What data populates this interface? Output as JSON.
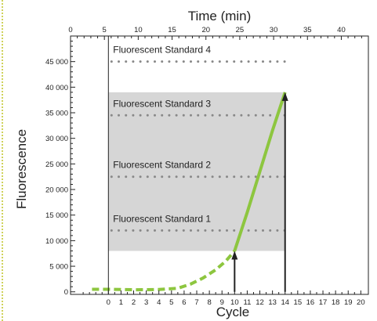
{
  "colors": {
    "curve": "#8dc63f",
    "shade": "#d6d6d6",
    "dots": "#888888",
    "axis": "#222222",
    "edge_marker": "#cfd25a"
  },
  "chart_data": {
    "type": "line",
    "xlabel": "Cycle",
    "x2label": "Time (min)",
    "ylabel": "Fluorescence",
    "xlim": [
      -3,
      20.6
    ],
    "ylim": [
      -500,
      50000
    ],
    "x2lim": [
      0,
      44
    ],
    "x_ticks": [
      0,
      1,
      2,
      3,
      4,
      5,
      6,
      7,
      8,
      9,
      10,
      11,
      12,
      13,
      14,
      15,
      16,
      17,
      18,
      19,
      20
    ],
    "x2_ticks": [
      0,
      5,
      10,
      15,
      20,
      25,
      30,
      35,
      40
    ],
    "y_ticks": [
      0,
      5000,
      10000,
      15000,
      20000,
      25000,
      30000,
      35000,
      40000,
      45000
    ],
    "y_tick_labels": [
      "0",
      "5 000",
      "10 000",
      "15 000",
      "20 000",
      "25 000",
      "30 000",
      "35 000",
      "40 000",
      "45 000"
    ],
    "grid": false,
    "standards": [
      {
        "name": "Fluorescent Standard 4",
        "value": 45000
      },
      {
        "name": "Fluorescent Standard 3",
        "value": 34500
      },
      {
        "name": "Fluorescent Standard 2",
        "value": 22500
      },
      {
        "name": "Fluorescent Standard 1",
        "value": 12000
      }
    ],
    "shaded_band": {
      "x": [
        0,
        14
      ],
      "y": [
        8000,
        39000
      ]
    },
    "series": [
      {
        "style": "dashed",
        "x": [
          -1.3,
          0,
          2,
          4,
          5.5,
          6.5,
          7.5,
          8.5,
          9.3,
          10
        ],
        "y": [
          500,
          500,
          400,
          450,
          700,
          1500,
          2700,
          4300,
          6000,
          8000
        ]
      },
      {
        "style": "solid",
        "x": [
          10,
          11,
          12,
          13,
          14
        ],
        "y": [
          8000,
          15500,
          23500,
          31500,
          39000
        ]
      }
    ],
    "arrows": [
      {
        "x": 10,
        "y_from": 0,
        "y_to": 8000
      },
      {
        "x": 14,
        "y_from": 0,
        "y_to": 39000
      }
    ],
    "vertical_line": {
      "x": 0
    }
  }
}
